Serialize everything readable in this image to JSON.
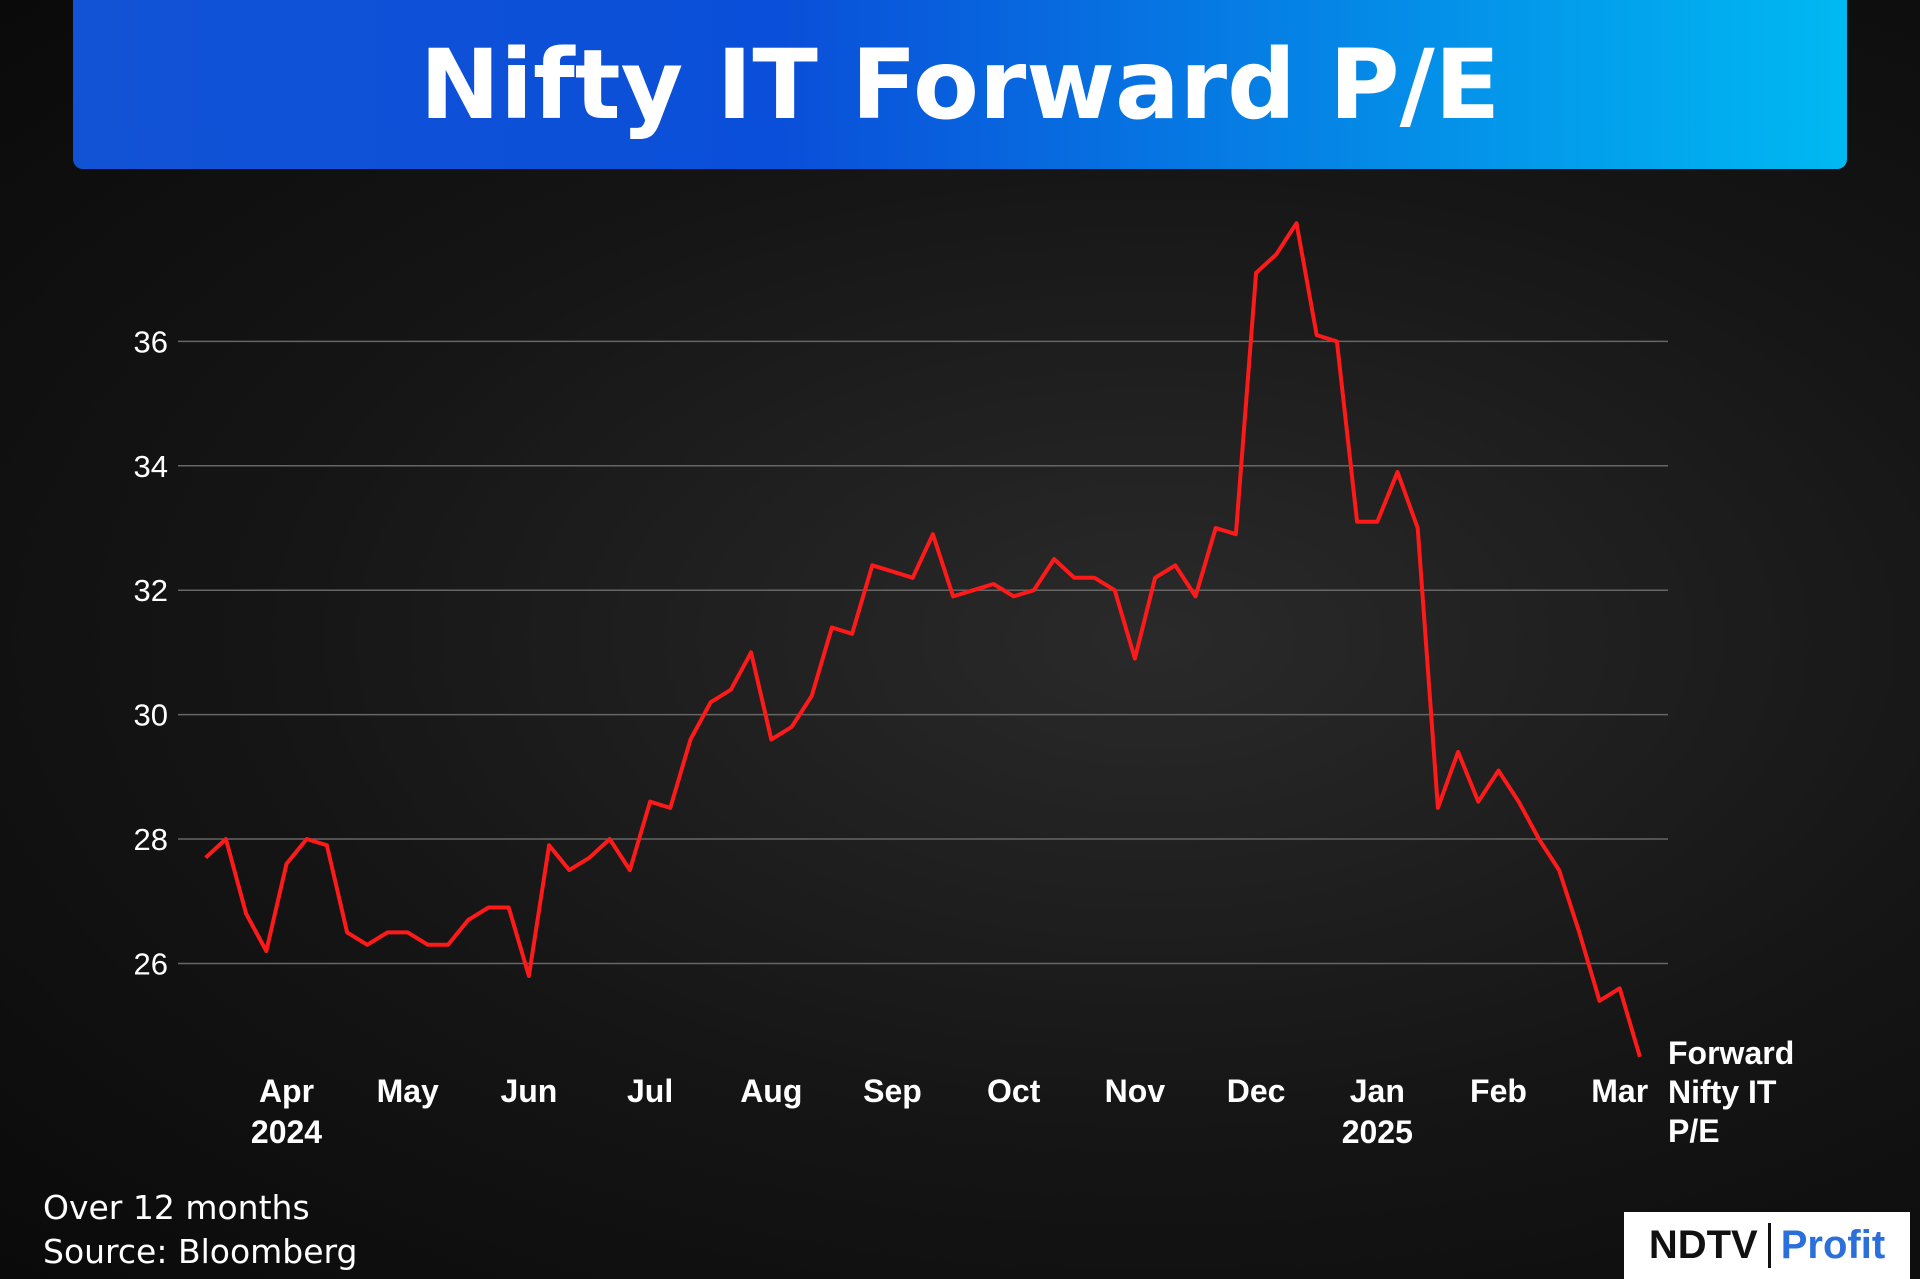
{
  "chart_data": {
    "type": "line",
    "title": "Nifty IT Forward P/E",
    "subtitle": "Over 12 months",
    "source": "Source: Bloomberg",
    "categories": [
      null,
      null,
      null,
      null,
      "Apr 2024",
      null,
      null,
      null,
      null,
      null,
      "May",
      null,
      null,
      null,
      null,
      null,
      "Jun",
      null,
      null,
      null,
      null,
      null,
      "Jul",
      null,
      null,
      null,
      null,
      null,
      "Aug",
      null,
      null,
      null,
      null,
      null,
      "Sep",
      null,
      null,
      null,
      null,
      null,
      "Oct",
      null,
      null,
      null,
      null,
      null,
      "Nov",
      null,
      null,
      null,
      null,
      null,
      "Dec",
      null,
      null,
      null,
      null,
      null,
      "Jan 2025",
      null,
      null,
      null,
      null,
      null,
      "Feb",
      null,
      null,
      null,
      null,
      null,
      "Mar",
      null
    ],
    "series": [
      {
        "name": "Forward Nifty IT P/E",
        "color": "#ff1a1a",
        "values": [
          27.7,
          28.0,
          26.8,
          26.2,
          27.6,
          28.0,
          27.9,
          26.5,
          26.3,
          26.5,
          26.5,
          26.3,
          26.3,
          26.7,
          26.9,
          26.9,
          25.8,
          27.9,
          27.5,
          27.7,
          28.0,
          27.5,
          28.6,
          28.5,
          29.6,
          30.2,
          30.4,
          31.0,
          29.6,
          29.8,
          30.3,
          31.4,
          31.3,
          32.4,
          32.3,
          32.2,
          32.9,
          31.9,
          32.0,
          32.1,
          31.9,
          32.0,
          32.5,
          32.2,
          32.2,
          32.0,
          30.9,
          32.2,
          32.4,
          31.9,
          33.0,
          32.9,
          37.1,
          37.4,
          37.9,
          36.1,
          36.0,
          33.1,
          33.1,
          33.9,
          33.0,
          28.5,
          29.4,
          28.6,
          29.1,
          28.6,
          28.0,
          27.5,
          26.5,
          25.4,
          25.6,
          24.5
        ]
      }
    ],
    "ylim": [
      24.4,
      38.2
    ],
    "yticks": [
      26,
      28,
      30,
      32,
      34,
      36
    ],
    "grid": true
  },
  "brand": {
    "left": "NDTV",
    "right": "Profit"
  }
}
